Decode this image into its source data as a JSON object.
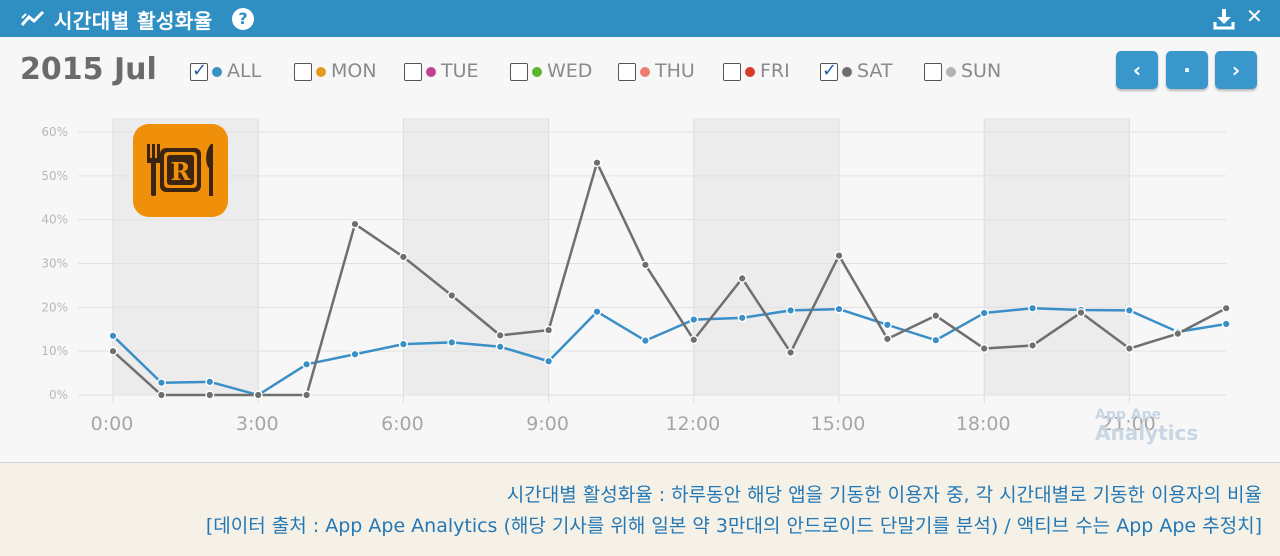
{
  "header": {
    "title": "시간대별 활성화율",
    "help_icon": "?"
  },
  "month_label": "2015 Jul",
  "filters": [
    {
      "label": "ALL",
      "checked": true,
      "color": "#3a8fc7"
    },
    {
      "label": "MON",
      "checked": false,
      "color": "#e59a1e"
    },
    {
      "label": "TUE",
      "checked": false,
      "color": "#c2418e"
    },
    {
      "label": "WED",
      "checked": false,
      "color": "#5bb52f"
    },
    {
      "label": "THU",
      "checked": false,
      "color": "#ec7c72"
    },
    {
      "label": "FRI",
      "checked": false,
      "color": "#d93c26"
    },
    {
      "label": "SAT",
      "checked": true,
      "color": "#6f6f6f"
    },
    {
      "label": "SUN",
      "checked": false,
      "color": "#b3b3b3"
    }
  ],
  "nav": {
    "prev_icon": "‹",
    "center_icon": "·",
    "next_icon": "›"
  },
  "chart_data": {
    "type": "line",
    "x": [
      0,
      1,
      2,
      3,
      4,
      5,
      6,
      7,
      8,
      9,
      10,
      11,
      12,
      13,
      14,
      15,
      16,
      17,
      18,
      19,
      20,
      21,
      22,
      23
    ],
    "xticks": [
      "0:00",
      "3:00",
      "6:00",
      "9:00",
      "12:00",
      "15:00",
      "18:00",
      "21:00"
    ],
    "yticks": [
      "0%",
      "10%",
      "20%",
      "30%",
      "40%",
      "50%",
      "60%"
    ],
    "ylim": [
      0,
      60
    ],
    "series": [
      {
        "name": "ALL",
        "color": "#3a8fc7",
        "values": [
          13.5,
          2.8,
          3,
          0,
          7,
          9.3,
          11.6,
          12,
          11,
          7.7,
          19,
          12.4,
          17.2,
          17.6,
          19.3,
          19.6,
          16,
          12.5,
          18.7,
          19.8,
          19.4,
          19.3,
          14.4,
          16.2
        ]
      },
      {
        "name": "SAT",
        "color": "#6f6f6f",
        "values": [
          10,
          0,
          0,
          0,
          0,
          39,
          31.5,
          22.7,
          13.6,
          14.8,
          53,
          29.7,
          12.6,
          26.6,
          9.7,
          31.8,
          12.8,
          18.1,
          10.6,
          11.3,
          18.8,
          10.6,
          14,
          19.8
        ]
      }
    ]
  },
  "watermark": {
    "line1": "App Ape",
    "line2": "Analytics"
  },
  "footer": {
    "line1": "시간대별 활성화율 : 하루동안 해당 앱을 기동한 이용자 중, 각 시간대별로 기동한 이용자의 비율",
    "line2": "[데이터 출처 : App Ape Analytics (해당 기사를 위해 일본 약 3만대의 안드로이드 단말기를 분석) / 액티브 수는 App Ape 추정치]"
  }
}
